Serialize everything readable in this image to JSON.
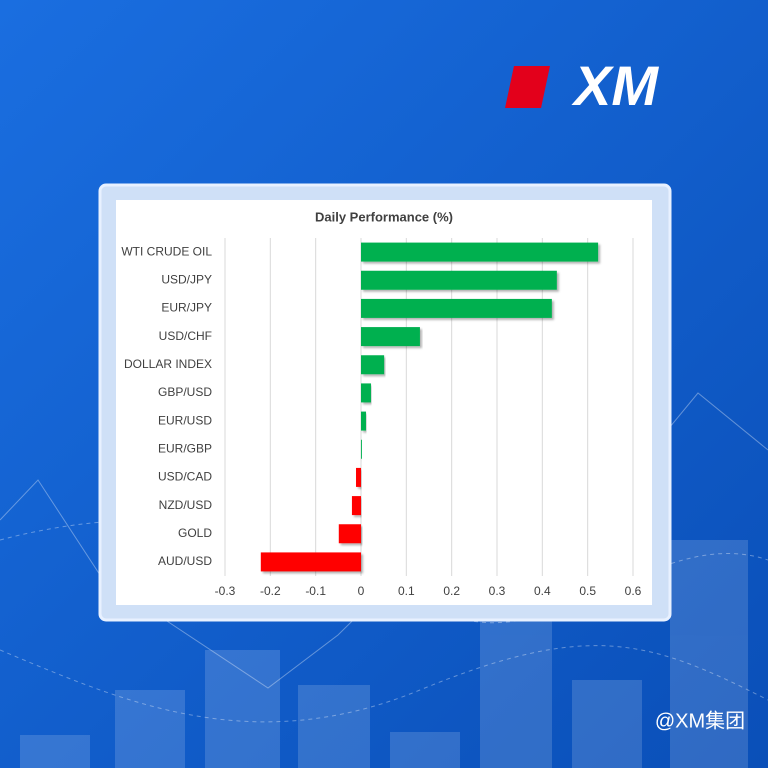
{
  "brand": {
    "logo": "XM",
    "watermark": "@XM集团"
  },
  "chart_data": {
    "type": "bar",
    "orientation": "horizontal",
    "title": "Daily Performance (%)",
    "categories": [
      "WTI CRUDE OIL",
      "USD/JPY",
      "EUR/JPY",
      "USD/CHF",
      "DOLLAR INDEX",
      "GBP/USD",
      "EUR/USD",
      "EUR/GBP",
      "USD/CAD",
      "NZD/USD",
      "GOLD",
      "AUD/USD"
    ],
    "values": [
      0.523,
      0.432,
      0.421,
      0.13,
      0.051,
      0.022,
      0.011,
      0.002,
      -0.011,
      -0.02,
      -0.049,
      -0.221
    ],
    "positive_color": "#00b050",
    "negative_color": "#ff0000",
    "xlim": [
      -0.3,
      0.6
    ],
    "xticks": [
      -0.3,
      -0.2,
      -0.1,
      0,
      0.1,
      0.2,
      0.3,
      0.4,
      0.5,
      0.6
    ],
    "grid": true
  }
}
